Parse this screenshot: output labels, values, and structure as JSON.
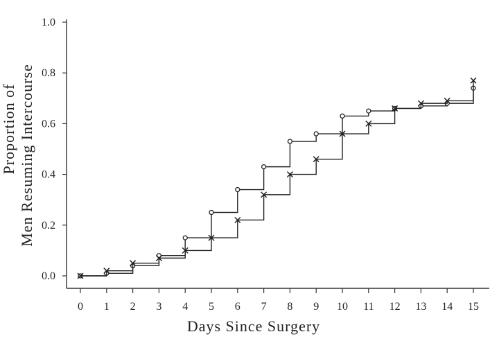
{
  "chart_data": {
    "type": "line",
    "title": "",
    "xlabel": "Days Since Surgery",
    "ylabel_line1": "Proportion of",
    "ylabel_line2": "Men Resuming Intercourse",
    "xlim": [
      0,
      15
    ],
    "ylim": [
      0,
      1.0
    ],
    "x_ticks": [
      0,
      1,
      2,
      3,
      4,
      5,
      6,
      7,
      8,
      9,
      10,
      11,
      12,
      13,
      14,
      15
    ],
    "y_ticks": [
      0.0,
      0.2,
      0.4,
      0.6,
      0.8,
      1.0
    ],
    "y_tick_labels": [
      "0.0",
      "0.2",
      "0.4",
      "0.6",
      "0.8",
      "1.0"
    ],
    "step": true,
    "grid": false,
    "series": [
      {
        "marker": "circle",
        "x": [
          0,
          1,
          2,
          3,
          4,
          5,
          6,
          7,
          8,
          9,
          10,
          11,
          12,
          13,
          14,
          15
        ],
        "y": [
          0.0,
          0.01,
          0.04,
          0.08,
          0.15,
          0.25,
          0.34,
          0.43,
          0.53,
          0.56,
          0.63,
          0.65,
          0.66,
          0.67,
          0.68,
          0.74
        ],
        "color": "#222222"
      },
      {
        "marker": "x",
        "x": [
          0,
          1,
          2,
          3,
          4,
          5,
          6,
          7,
          8,
          9,
          10,
          11,
          12,
          13,
          14,
          15
        ],
        "y": [
          0.0,
          0.02,
          0.05,
          0.07,
          0.1,
          0.15,
          0.22,
          0.32,
          0.4,
          0.46,
          0.56,
          0.6,
          0.66,
          0.68,
          0.69,
          0.77
        ],
        "color": "#222222"
      }
    ]
  }
}
